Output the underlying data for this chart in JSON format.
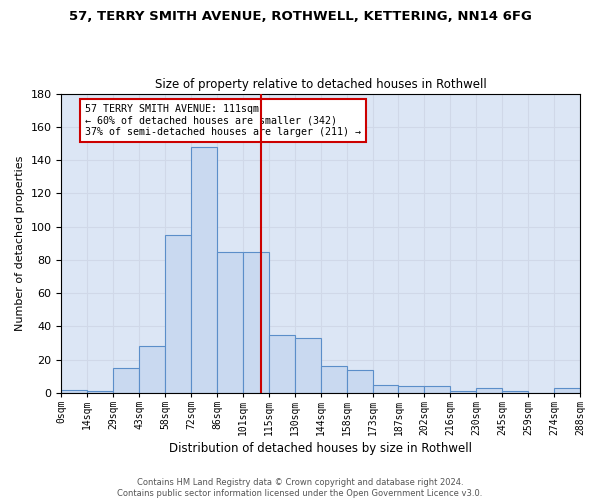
{
  "title1": "57, TERRY SMITH AVENUE, ROTHWELL, KETTERING, NN14 6FG",
  "title2": "Size of property relative to detached houses in Rothwell",
  "xlabel": "Distribution of detached houses by size in Rothwell",
  "ylabel": "Number of detached properties",
  "bin_labels": [
    "0sqm",
    "14sqm",
    "29sqm",
    "43sqm",
    "58sqm",
    "72sqm",
    "86sqm",
    "101sqm",
    "115sqm",
    "130sqm",
    "144sqm",
    "158sqm",
    "173sqm",
    "187sqm",
    "202sqm",
    "216sqm",
    "230sqm",
    "245sqm",
    "259sqm",
    "274sqm",
    "288sqm"
  ],
  "bar_heights": [
    2,
    1,
    15,
    28,
    95,
    148,
    85,
    85,
    35,
    33,
    16,
    14,
    5,
    4,
    4,
    1,
    3,
    1,
    0,
    3
  ],
  "bar_color": "#c9d9f0",
  "bar_edge_color": "#5b8ec9",
  "annotation_text": "57 TERRY SMITH AVENUE: 111sqm\n← 60% of detached houses are smaller (342)\n37% of semi-detached houses are larger (211) →",
  "annotation_box_color": "#ffffff",
  "annotation_box_edge_color": "#cc0000",
  "grid_color": "#d0d8e8",
  "background_color": "#dce6f5",
  "footer_text": "Contains HM Land Registry data © Crown copyright and database right 2024.\nContains public sector information licensed under the Open Government Licence v3.0.",
  "ylim": [
    0,
    180
  ],
  "property_size_bin_index": 7,
  "n_bins": 20
}
